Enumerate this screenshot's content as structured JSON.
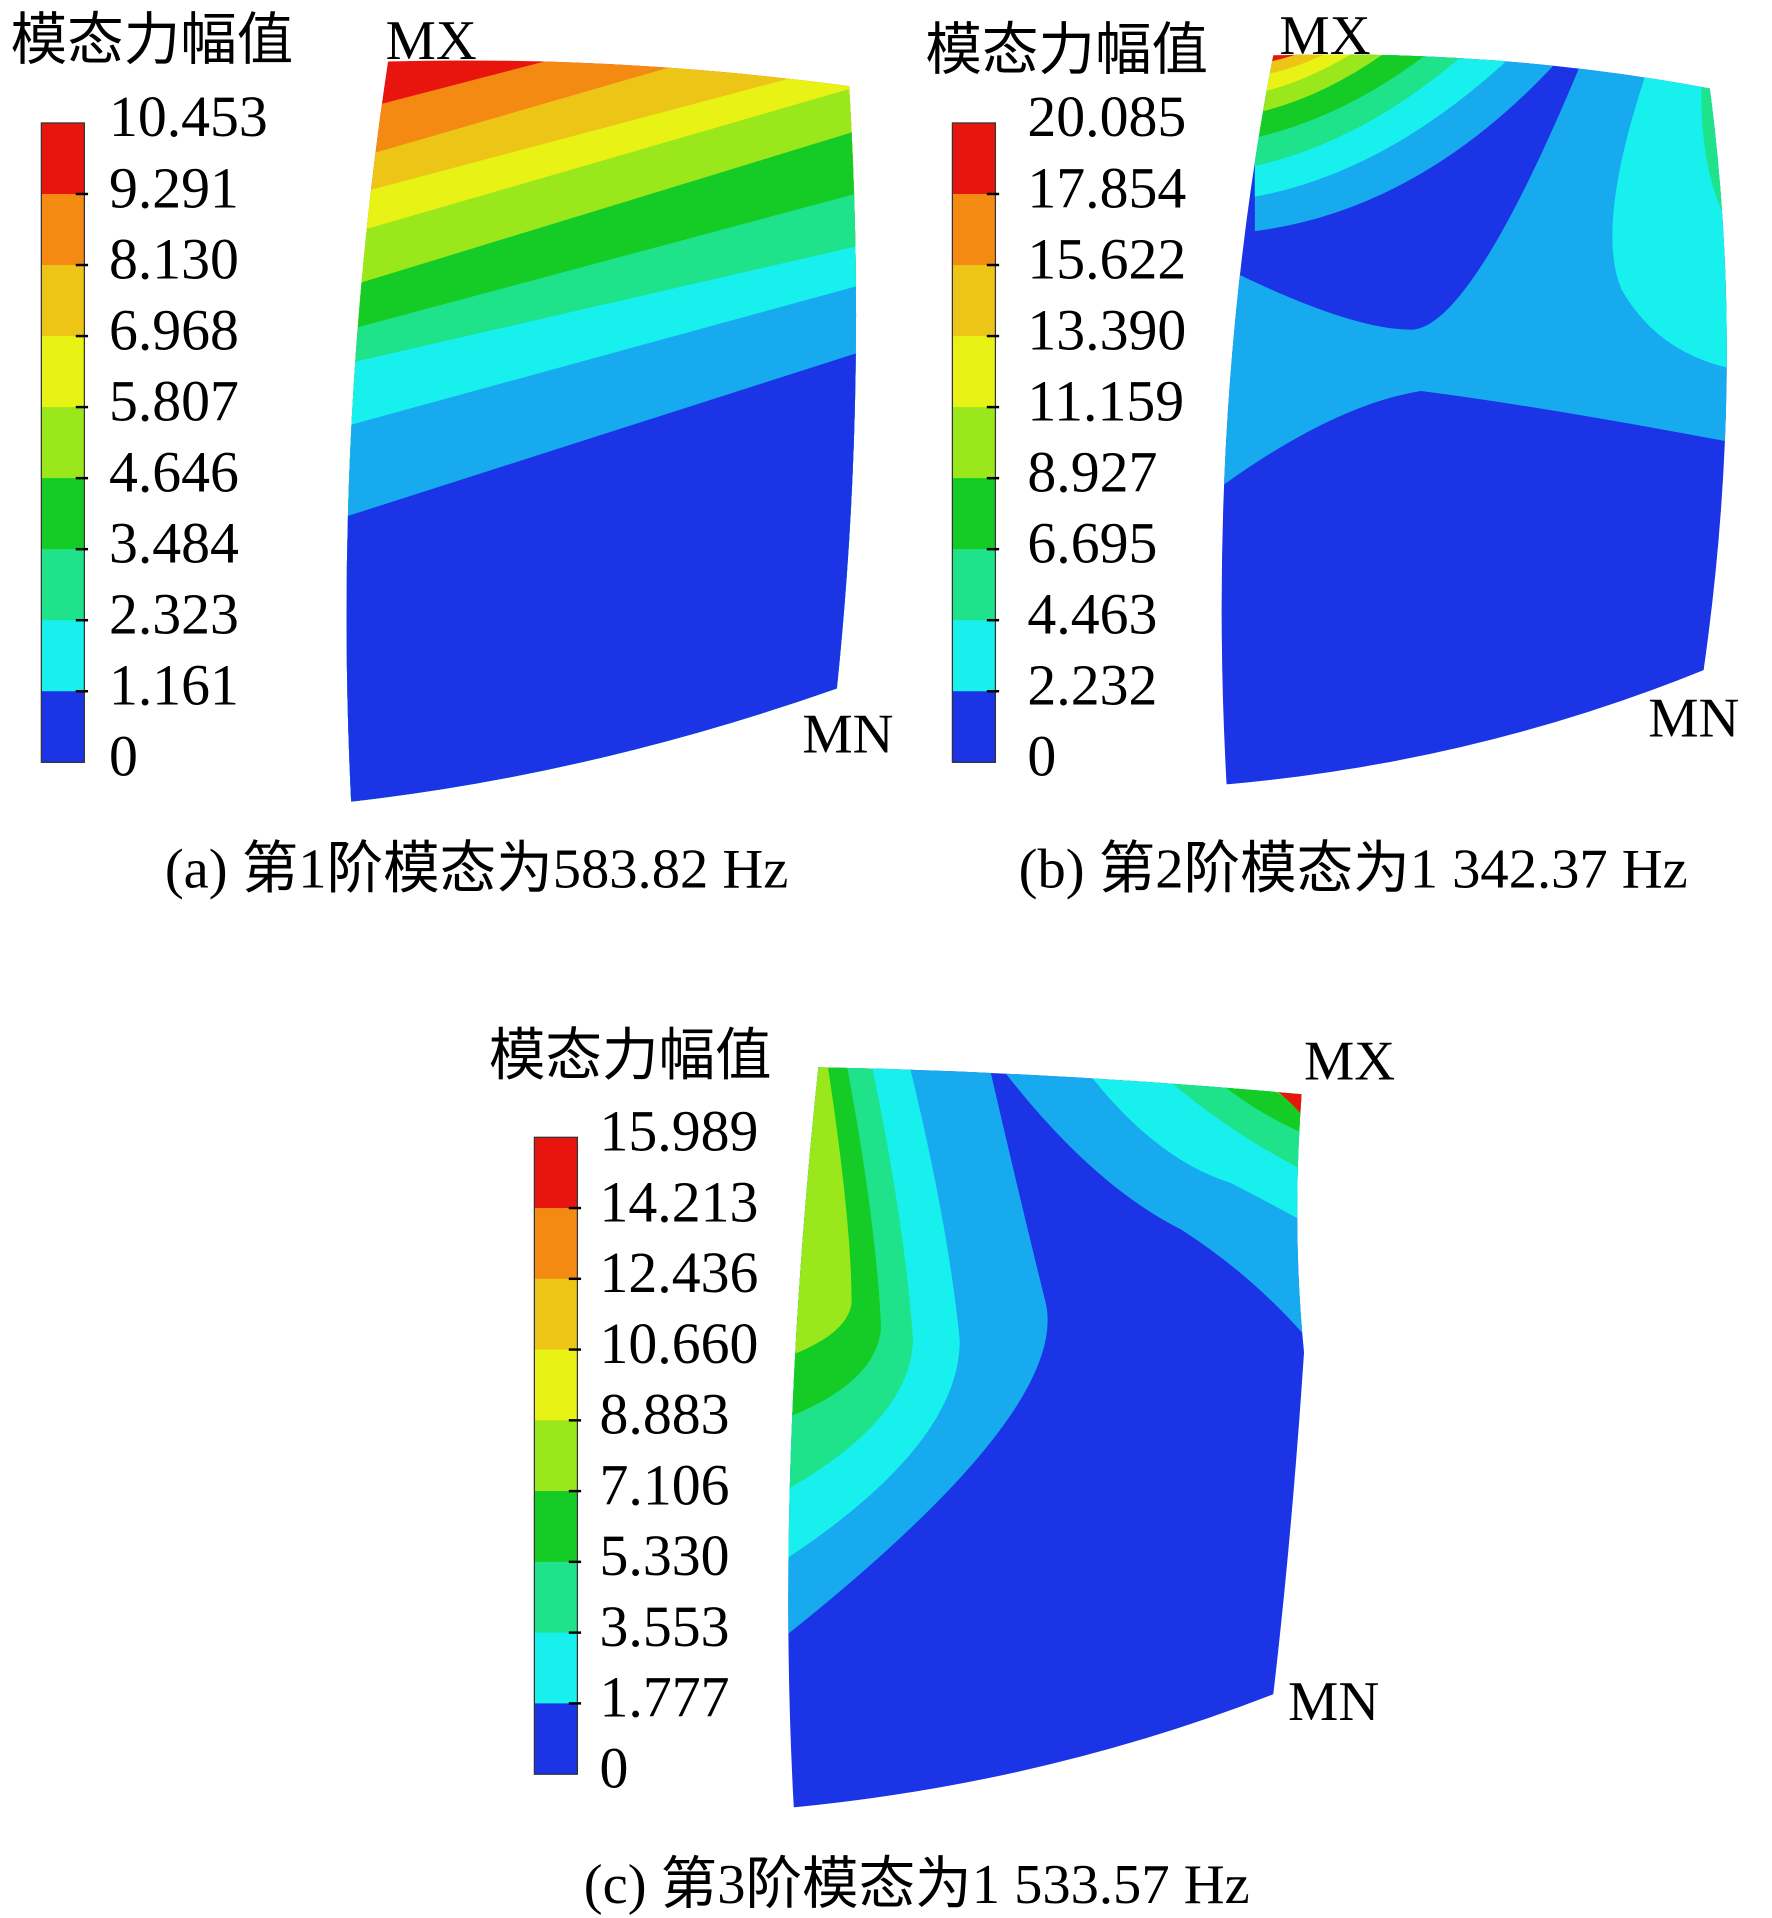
{
  "panels": [
    {
      "legend_title": "模态力幅值",
      "legend_labels": [
        "10.453",
        "9.291",
        "8.130",
        "6.968",
        "5.807",
        "4.646",
        "3.484",
        "2.323",
        "1.161",
        "0"
      ],
      "max_label": "MX",
      "min_label": "MN",
      "caption": "(a) 第1阶模态为583.82 Hz"
    },
    {
      "legend_title": "模态力幅值",
      "legend_labels": [
        "20.085",
        "17.854",
        "15.622",
        "13.390",
        "11.159",
        "8.927",
        "6.695",
        "4.463",
        "2.232",
        "0"
      ],
      "max_label": "MX",
      "min_label": "MN",
      "caption": "(b) 第2阶模态为1 342.37 Hz"
    },
    {
      "legend_title": "模态力幅值",
      "legend_labels": [
        "15.989",
        "14.213",
        "12.436",
        "10.660",
        "8.883",
        "7.106",
        "5.330",
        "3.553",
        "1.777",
        "0"
      ],
      "max_label": "MX",
      "min_label": "MN",
      "caption": "(c) 第3阶模态为1 533.57 Hz"
    }
  ]
}
